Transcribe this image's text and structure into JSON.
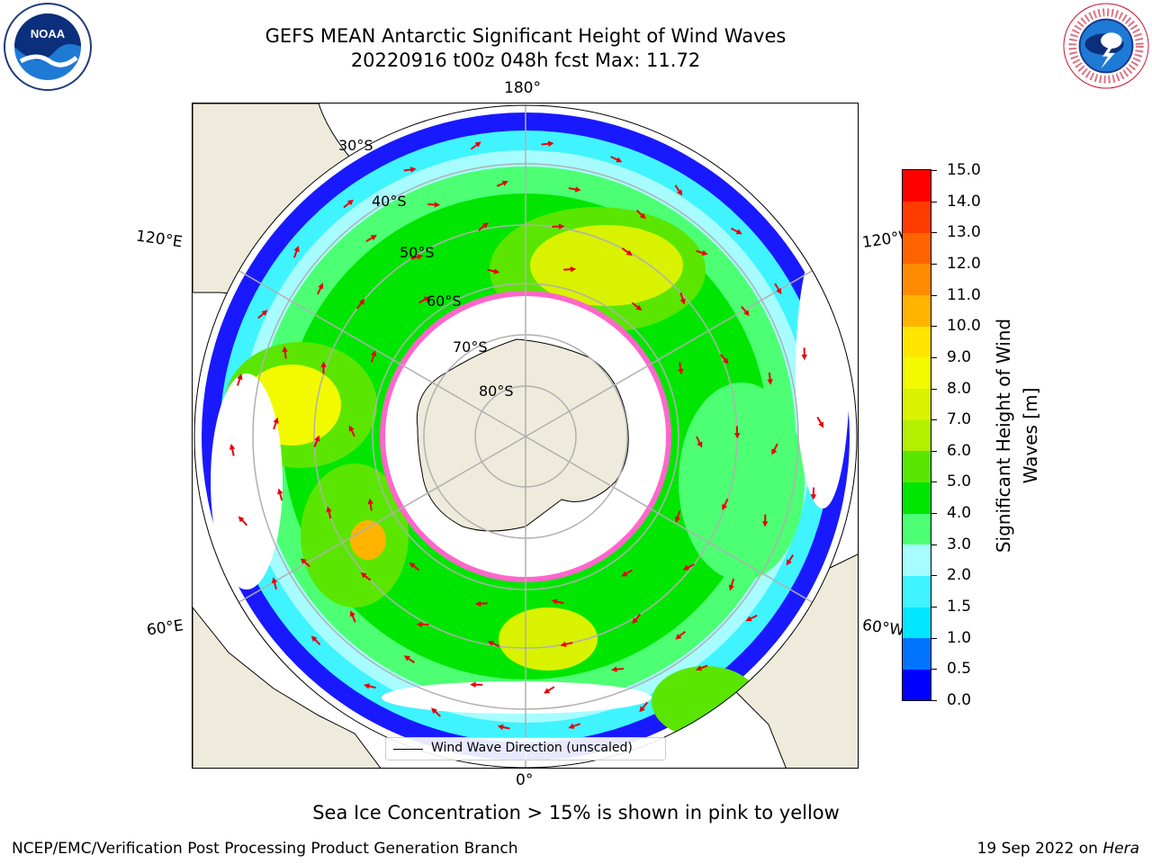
{
  "header": {
    "title_line1": "GEFS MEAN Antarctic Significant Height of Wind Waves",
    "title_line2": "20220916 t00z 048h fcst   Max: 11.72",
    "noaa_logo_text": "NOAA",
    "nws_logo_text": "NATIONAL WEATHER SERVICE"
  },
  "map": {
    "longitude_labels": {
      "top": "180°",
      "bottom": "0°",
      "upper_left": "120°E",
      "lower_left": "60°E",
      "upper_right": "120°W",
      "lower_right": "60°W"
    },
    "latitude_labels": [
      "30°S",
      "40°S",
      "50°S",
      "60°S",
      "70°S",
      "80°S"
    ],
    "legend_label": "Wind Wave Direction (unscaled)",
    "colors": {
      "land": "#efebdc",
      "ocean_blank": "#ffffff",
      "arrow": "#e8000b",
      "sea_ice": "#ff66cc",
      "grid": "#b0b0b0"
    }
  },
  "colorbar": {
    "label_line1": "Significant Height of Wind",
    "label_line2": "Waves [m]",
    "ticks": [
      "0.0",
      "0.5",
      "1.0",
      "1.5",
      "2.0",
      "3.0",
      "4.0",
      "5.0",
      "6.0",
      "7.0",
      "8.0",
      "9.0",
      "10.0",
      "11.0",
      "12.0",
      "13.0",
      "14.0",
      "15.0"
    ],
    "levels": [
      {
        "from": 0.0,
        "to": 0.5,
        "color": "#0000ff"
      },
      {
        "from": 0.5,
        "to": 1.0,
        "color": "#0073ff"
      },
      {
        "from": 1.0,
        "to": 1.5,
        "color": "#00e6ff"
      },
      {
        "from": 1.5,
        "to": 2.0,
        "color": "#3ff4ff"
      },
      {
        "from": 2.0,
        "to": 3.0,
        "color": "#a6fcff"
      },
      {
        "from": 3.0,
        "to": 4.0,
        "color": "#4dff73"
      },
      {
        "from": 4.0,
        "to": 5.0,
        "color": "#00e600"
      },
      {
        "from": 5.0,
        "to": 6.0,
        "color": "#5ae600"
      },
      {
        "from": 6.0,
        "to": 7.0,
        "color": "#b3f000"
      },
      {
        "from": 7.0,
        "to": 8.0,
        "color": "#d9f200"
      },
      {
        "from": 8.0,
        "to": 9.0,
        "color": "#f3fa00"
      },
      {
        "from": 9.0,
        "to": 10.0,
        "color": "#ffe600"
      },
      {
        "from": 10.0,
        "to": 11.0,
        "color": "#ffb400"
      },
      {
        "from": 11.0,
        "to": 12.0,
        "color": "#ff8c00"
      },
      {
        "from": 12.0,
        "to": 13.0,
        "color": "#ff6400"
      },
      {
        "from": 13.0,
        "to": 14.0,
        "color": "#ff3c00"
      },
      {
        "from": 14.0,
        "to": 15.0,
        "color": "#ff0000"
      }
    ]
  },
  "footer": {
    "note": "Sea Ice Concentration > 15% is shown in pink to yellow",
    "credit": "NCEP/EMC/Verification Post Processing Product Generation Branch",
    "date_text": "19 Sep 2022 on",
    "host": "Hera"
  }
}
